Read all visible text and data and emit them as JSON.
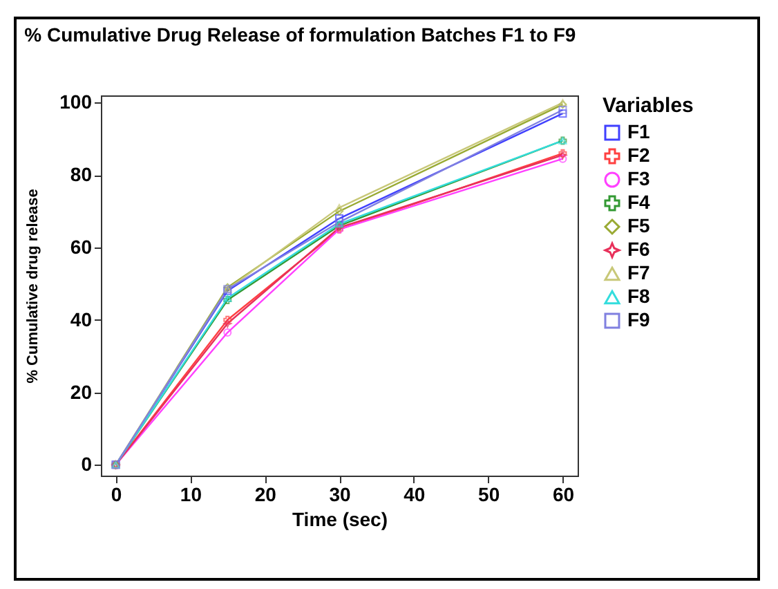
{
  "chart_data": {
    "type": "line",
    "title": "% Cumulative Drug Release of formulation Batches F1 to F9",
    "xlabel": "Time (sec)",
    "ylabel": "% Cumulative drug release",
    "legend_title": "Variables",
    "legend": "right",
    "grid": false,
    "x": [
      0,
      15,
      30,
      60
    ],
    "xlim": [
      -2,
      62
    ],
    "xticks": [
      0,
      10,
      20,
      30,
      40,
      50,
      60
    ],
    "ylim": [
      -3,
      102
    ],
    "yticks": [
      0,
      20,
      40,
      60,
      80,
      100
    ],
    "series": [
      {
        "name": "F1",
        "color": "#4040ff",
        "marker": "square",
        "values": [
          0,
          48,
          68,
          97
        ]
      },
      {
        "name": "F2",
        "color": "#ff4040",
        "marker": "cross",
        "values": [
          0,
          40,
          65,
          86
        ]
      },
      {
        "name": "F3",
        "color": "#ff40ff",
        "marker": "circle",
        "values": [
          0,
          36.5,
          65,
          84.5
        ]
      },
      {
        "name": "F4",
        "color": "#339933",
        "marker": "cross",
        "values": [
          0,
          45.5,
          66,
          89.5
        ]
      },
      {
        "name": "F5",
        "color": "#99aa33",
        "marker": "diamond",
        "values": [
          0,
          49,
          70,
          99.5
        ]
      },
      {
        "name": "F6",
        "color": "#e8305a",
        "marker": "star",
        "values": [
          0,
          39,
          65.5,
          85.5
        ]
      },
      {
        "name": "F7",
        "color": "#c8c878",
        "marker": "triangle",
        "values": [
          0,
          48.5,
          71,
          100
        ]
      },
      {
        "name": "F8",
        "color": "#33dddd",
        "marker": "triangle",
        "values": [
          0,
          46,
          66.5,
          89.5
        ]
      },
      {
        "name": "F9",
        "color": "#8080e0",
        "marker": "square",
        "values": [
          0,
          48.5,
          67,
          98
        ]
      }
    ]
  }
}
